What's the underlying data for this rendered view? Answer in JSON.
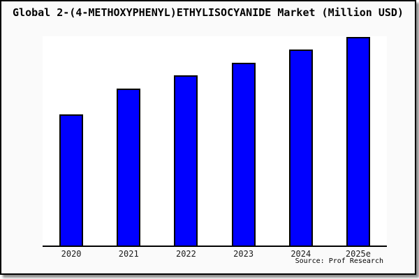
{
  "source": "Source: Prof Research",
  "colors": {
    "bar_fill": "#0000ff",
    "bar_border": "#000000",
    "axis": "#000000",
    "panel_background": "#fafafa",
    "plot_background": "#ffffff",
    "shadow": "#8f8f8f"
  },
  "chart_data": {
    "type": "bar",
    "title": "Global 2-(4-METHOXYPHENYL)ETHYLISOCYANIDE Market (Million USD)",
    "categories": [
      "2020",
      "2021",
      "2022",
      "2023",
      "2024",
      "2025e"
    ],
    "values": [
      62.7,
      75.0,
      81.3,
      87.3,
      93.7,
      99.7
    ],
    "xlabel": "",
    "ylabel": "",
    "ylim": [
      0,
      100
    ],
    "grid": false,
    "legend": false,
    "y_axis_labels_shown": false,
    "values_unit": "relative-percent-of-plot-height"
  }
}
